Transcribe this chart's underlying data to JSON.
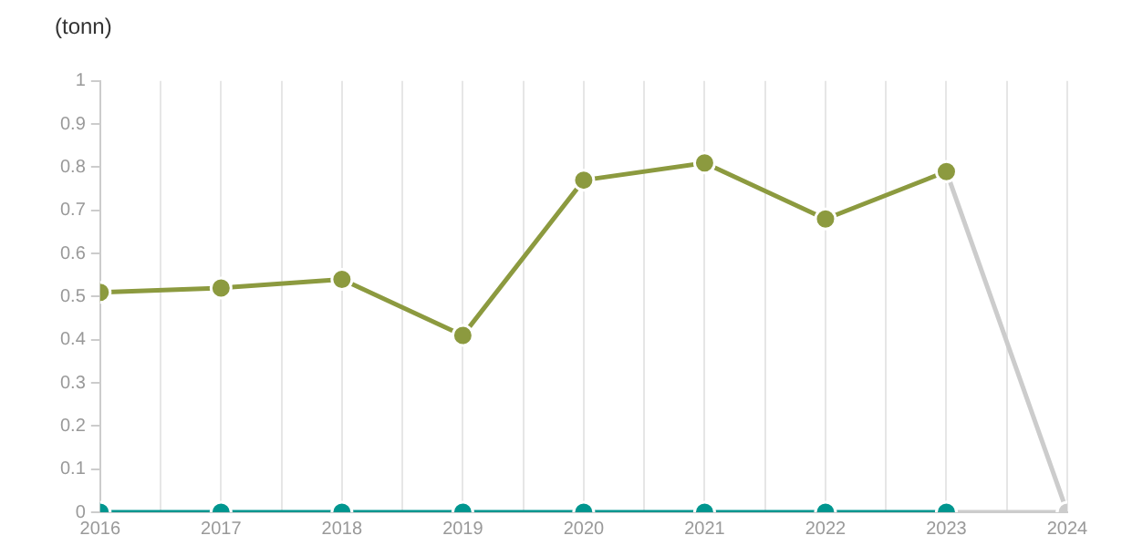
{
  "chart_data": {
    "type": "line",
    "ylabel": "(tonn)",
    "x": [
      2016,
      2017,
      2018,
      2019,
      2020,
      2021,
      2022,
      2023,
      2024
    ],
    "series": [
      {
        "color": "#8c9a3f",
        "values": [
          0.51,
          0.52,
          0.54,
          0.41,
          0.77,
          0.81,
          0.68,
          0.79,
          null
        ]
      },
      {
        "color": "#00968f",
        "values": [
          0,
          0,
          0,
          0,
          0,
          0,
          0,
          0,
          null
        ]
      },
      {
        "color": "#cccccc",
        "values": [
          null,
          null,
          null,
          null,
          null,
          null,
          null,
          0.79,
          0
        ]
      },
      {
        "color": "#cccccc",
        "values": [
          null,
          null,
          null,
          null,
          null,
          null,
          null,
          0,
          0
        ]
      }
    ],
    "xlim": [
      2016,
      2024
    ],
    "xticks": [
      2016,
      {
        "value": 2016.5,
        "label": null
      },
      2017,
      {
        "value": 2017.5,
        "label": null
      },
      2018,
      {
        "value": 2018.5,
        "label": null
      },
      2019,
      {
        "value": 2019.5,
        "label": null
      },
      2020,
      {
        "value": 2020.5,
        "label": null
      },
      2021,
      {
        "value": 2021.5,
        "label": null
      },
      2022,
      {
        "value": 2022.5,
        "label": null
      },
      2023,
      {
        "value": 2023.5,
        "label": null
      },
      2024
    ],
    "ylim": [
      0,
      1
    ],
    "yticks": [
      0,
      0.1,
      0.2,
      0.3,
      0.4,
      0.5,
      0.6,
      0.7,
      0.8,
      0.9,
      1
    ],
    "grid": "x",
    "marker": "circle",
    "line_style": "solid",
    "legend": false
  }
}
